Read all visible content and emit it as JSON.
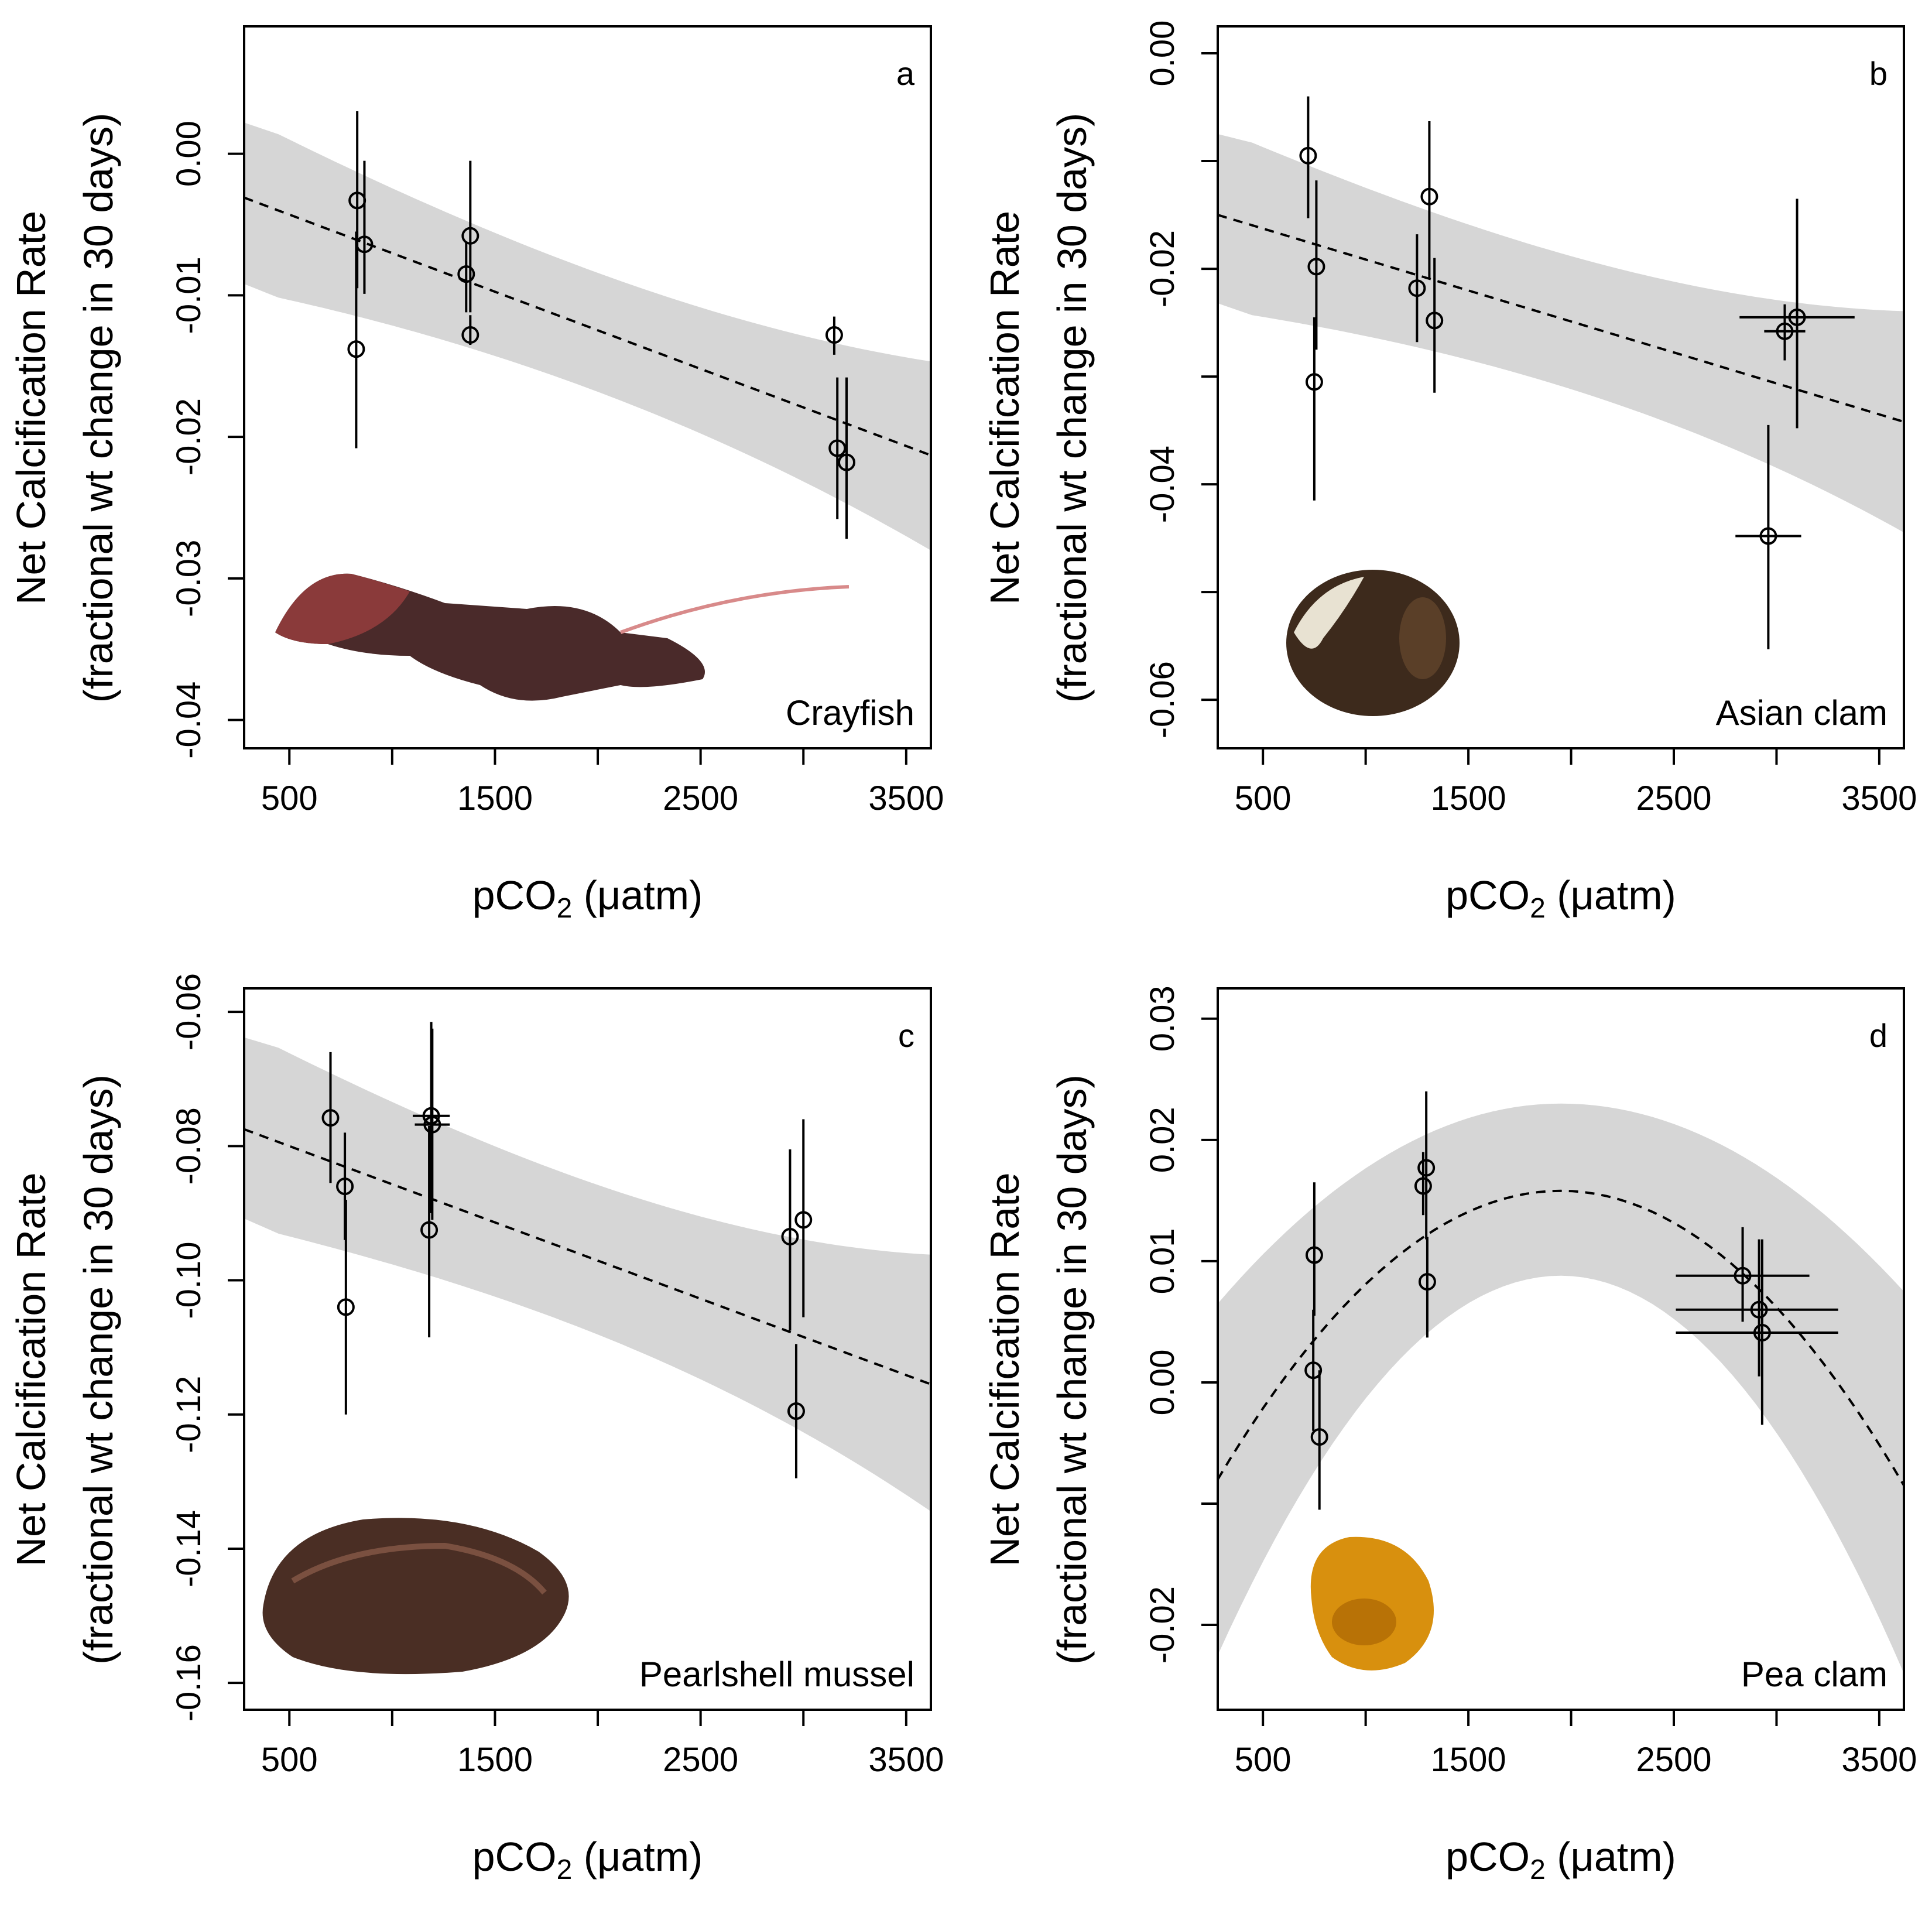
{
  "chart_data": [
    {
      "type": "scatter",
      "panel_label": "a",
      "species": "Crayfish",
      "image": "crayfish-photo",
      "xlabel": "pCO2 (μatm)",
      "ylabel": "Net Calcification Rate",
      "ylabel2": "(fractional wt change in 30 days)",
      "xlim": [
        280,
        3620
      ],
      "ylim": [
        -0.042,
        0.009
      ],
      "x_ticks": [
        500,
        1000,
        1500,
        2000,
        2500,
        3000,
        3500
      ],
      "x_tick_labels": [
        "500",
        "",
        "1500",
        "",
        "2500",
        "",
        "3500"
      ],
      "y_ticks": [
        0.0,
        -0.01,
        -0.02,
        -0.03,
        -0.04
      ],
      "y_tick_labels": [
        "0.00",
        "-0.01",
        "-0.02",
        "-0.03",
        "-0.04"
      ],
      "points": [
        {
          "x": 830,
          "y": -0.0033,
          "ylo": 0.003,
          "yhi": -0.0095
        },
        {
          "x": 865,
          "y": -0.0064,
          "ylo": -0.0005,
          "yhi": -0.0099
        },
        {
          "x": 825,
          "y": -0.0138,
          "ylo": -0.0055,
          "yhi": -0.0208
        },
        {
          "x": 1380,
          "y": -0.0058,
          "ylo": -0.0005,
          "yhi": -0.0112
        },
        {
          "x": 1360,
          "y": -0.0085,
          "ylo": -0.0062,
          "yhi": -0.0112
        },
        {
          "x": 1380,
          "y": -0.0128,
          "ylo": -0.0114,
          "yhi": -0.0135
        },
        {
          "x": 3150,
          "y": -0.0128,
          "ylo": -0.0115,
          "yhi": -0.0142
        },
        {
          "x": 3165,
          "y": -0.0208,
          "ylo": -0.0158,
          "yhi": -0.0258
        },
        {
          "x": 3210,
          "y": -0.0218,
          "ylo": -0.0158,
          "yhi": -0.0272
        }
      ],
      "fit": {
        "kind": "linear",
        "x": [
          280,
          3620
        ],
        "y": [
          -0.0031,
          -0.0213
        ]
      },
      "band": {
        "x": [
          280,
          3620
        ],
        "upper": [
          0.0022,
          -0.0142
        ],
        "lower": [
          -0.0092,
          -0.0285
        ]
      }
    },
    {
      "type": "scatter",
      "panel_label": "b",
      "species": "Asian clam",
      "image": "asian-clam-photo",
      "xlabel": "pCO2 (μatm)",
      "ylabel": "Net Calcification Rate",
      "ylabel2": "(fractional wt change in 30 days)",
      "xlim": [
        280,
        3620
      ],
      "ylim": [
        -0.0645,
        0.0025
      ],
      "x_ticks": [
        500,
        1000,
        1500,
        2000,
        2500,
        3000,
        3500
      ],
      "x_tick_labels": [
        "500",
        "",
        "1500",
        "",
        "2500",
        "",
        "3500"
      ],
      "y_ticks": [
        0.0,
        -0.01,
        -0.02,
        -0.03,
        -0.04,
        -0.05,
        -0.06
      ],
      "y_tick_labels": [
        "0.00",
        "",
        "-0.02",
        "",
        "-0.04",
        "",
        "-0.06"
      ],
      "points": [
        {
          "x": 720,
          "y": -0.0095,
          "ylo": -0.004,
          "yhi": -0.0153
        },
        {
          "x": 760,
          "y": -0.0198,
          "ylo": -0.0118,
          "yhi": -0.0275
        },
        {
          "x": 750,
          "y": -0.0305,
          "ylo": -0.0245,
          "yhi": -0.0415
        },
        {
          "x": 1250,
          "y": -0.0218,
          "ylo": -0.0168,
          "yhi": -0.0268
        },
        {
          "x": 1310,
          "y": -0.0133,
          "ylo": -0.0063,
          "yhi": -0.021
        },
        {
          "x": 1335,
          "y": -0.0248,
          "ylo": -0.019,
          "yhi": -0.0315
        },
        {
          "x": 3040,
          "y": -0.0258,
          "ylo": -0.0233,
          "yhi": -0.0285,
          "xlo": 2940,
          "xhi": 3140
        },
        {
          "x": 3100,
          "y": -0.0245,
          "ylo": -0.0135,
          "yhi": -0.0348,
          "xlo": 2820,
          "xhi": 3380
        },
        {
          "x": 2960,
          "y": -0.0448,
          "ylo": -0.0345,
          "yhi": -0.0553,
          "xlo": 2800,
          "xhi": 3120
        }
      ],
      "fit": {
        "kind": "linear",
        "x": [
          280,
          3620
        ],
        "y": [
          -0.015,
          -0.0342
        ]
      },
      "band": {
        "x": [
          280,
          3620
        ],
        "upper": [
          -0.0075,
          -0.0232
        ],
        "lower": [
          -0.0232,
          -0.0452
        ]
      }
    },
    {
      "type": "scatter",
      "panel_label": "c",
      "species": "Pearlshell mussel",
      "image": "pearlshell-mussel-photo",
      "xlabel": "pCO2 (μatm)",
      "ylabel": "Net Calcification Rate",
      "ylabel2": "(fractional wt change in 30 days)",
      "xlim": [
        280,
        3620
      ],
      "ylim": [
        -0.164,
        -0.0565
      ],
      "x_ticks": [
        500,
        1000,
        1500,
        2000,
        2500,
        3000,
        3500
      ],
      "x_tick_labels": [
        "500",
        "",
        "1500",
        "",
        "2500",
        "",
        "3500"
      ],
      "y_ticks": [
        -0.06,
        -0.08,
        -0.1,
        -0.12,
        -0.14,
        -0.16
      ],
      "y_tick_labels": [
        "-0.06",
        "-0.08",
        "-0.10",
        "-0.12",
        "-0.14",
        "-0.16"
      ],
      "points": [
        {
          "x": 700,
          "y": -0.0758,
          "ylo": -0.066,
          "yhi": -0.0855
        },
        {
          "x": 770,
          "y": -0.086,
          "ylo": -0.078,
          "yhi": -0.094
        },
        {
          "x": 775,
          "y": -0.104,
          "ylo": -0.088,
          "yhi": -0.12
        },
        {
          "x": 1190,
          "y": -0.0755,
          "ylo": -0.0615,
          "yhi": -0.09,
          "xlo": 1100,
          "xhi": 1280
        },
        {
          "x": 1195,
          "y": -0.0768,
          "ylo": -0.0625,
          "yhi": -0.091,
          "xlo": 1110,
          "xhi": 1280
        },
        {
          "x": 1180,
          "y": -0.0925,
          "ylo": -0.077,
          "yhi": -0.1085
        },
        {
          "x": 2935,
          "y": -0.0935,
          "ylo": -0.0805,
          "yhi": -0.1075
        },
        {
          "x": 3000,
          "y": -0.091,
          "ylo": -0.076,
          "yhi": -0.1055
        },
        {
          "x": 2965,
          "y": -0.1195,
          "ylo": -0.1095,
          "yhi": -0.1295
        }
      ],
      "fit": {
        "kind": "linear",
        "x": [
          280,
          3620
        ],
        "y": [
          -0.0775,
          -0.1155
        ]
      },
      "band": {
        "x": [
          280,
          3620
        ],
        "upper": [
          -0.0638,
          -0.0948
        ],
        "lower": [
          -0.0908,
          -0.1358
        ]
      }
    },
    {
      "type": "scatter",
      "panel_label": "d",
      "species": "Pea clam",
      "image": "pea-clam-photo",
      "xlabel": "pCO2 (μatm)",
      "ylabel": "Net Calcification Rate",
      "ylabel2": "(fractional wt change in 30 days)",
      "xlim": [
        280,
        3620
      ],
      "ylim": [
        -0.027,
        0.0325
      ],
      "x_ticks": [
        500,
        1000,
        1500,
        2000,
        2500,
        3000,
        3500
      ],
      "x_tick_labels": [
        "500",
        "",
        "1500",
        "",
        "2500",
        "",
        "3500"
      ],
      "y_ticks": [
        0.03,
        0.02,
        0.01,
        0.0,
        -0.01,
        -0.02
      ],
      "y_tick_labels": [
        "0.03",
        "0.02",
        "0.01",
        "0.00",
        "",
        "-0.02"
      ],
      "points": [
        {
          "x": 750,
          "y": 0.0105,
          "ylo": 0.0165,
          "yhi": 0.0055
        },
        {
          "x": 745,
          "y": 0.001,
          "ylo": 0.006,
          "yhi": -0.004
        },
        {
          "x": 775,
          "y": -0.0045,
          "ylo": 0.001,
          "yhi": -0.0105
        },
        {
          "x": 1280,
          "y": 0.0162,
          "ylo": 0.019,
          "yhi": 0.0138
        },
        {
          "x": 1295,
          "y": 0.0177,
          "ylo": 0.024,
          "yhi": 0.0118
        },
        {
          "x": 1300,
          "y": 0.0083,
          "ylo": 0.012,
          "yhi": 0.0037
        },
        {
          "x": 2835,
          "y": 0.0088,
          "ylo": 0.0128,
          "yhi": 0.005,
          "xlo": 2510,
          "xhi": 3160
        },
        {
          "x": 2915,
          "y": 0.006,
          "ylo": 0.0118,
          "yhi": 0.0005,
          "xlo": 2510,
          "xhi": 3300
        },
        {
          "x": 2930,
          "y": 0.0041,
          "ylo": 0.0118,
          "yhi": -0.0035,
          "xlo": 2510,
          "xhi": 3300
        }
      ],
      "fit": {
        "kind": "quadratic",
        "vertex_x": 1950,
        "vertex_y": 0.0158,
        "x": [
          280,
          3620
        ],
        "y": [
          -0.008,
          -0.0085
        ]
      },
      "band": {
        "x": [
          280,
          3620
        ],
        "upper": [
          0.0065,
          0.0075
        ],
        "lower": [
          -0.0225,
          -0.024
        ],
        "peak_upper": 0.023,
        "peak_lower": 0.0088
      }
    }
  ]
}
